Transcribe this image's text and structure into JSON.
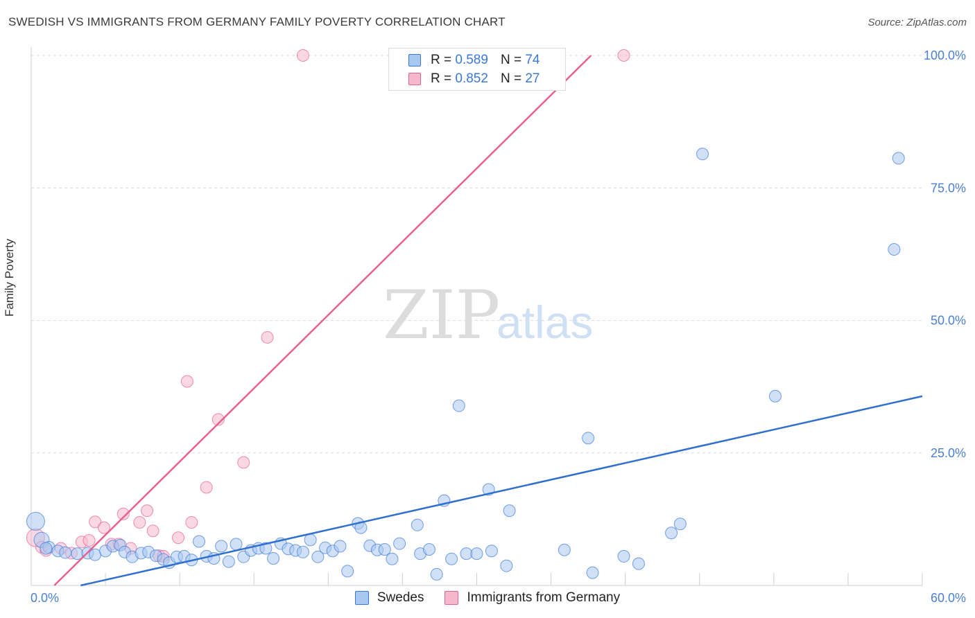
{
  "title": "SWEDISH VS IMMIGRANTS FROM GERMANY FAMILY POVERTY CORRELATION CHART",
  "source": "Source: ZipAtlas.com",
  "watermark": {
    "zip": "ZIP",
    "atlas": "atlas"
  },
  "colors": {
    "blue": "#3a78d8",
    "blue_fill": "#a9c8f0",
    "pink": "#e8608f",
    "pink_fill": "#f5b8cc"
  },
  "legend": {
    "r_label": "R =",
    "n_label": "N =",
    "series": [
      {
        "name": "Swedes",
        "r": "0.589",
        "n": "74"
      },
      {
        "name": "Immigrants from Germany",
        "r": "0.852",
        "n": "27"
      }
    ]
  },
  "chart_data": {
    "type": "scatter",
    "title": "SWEDISH VS IMMIGRANTS FROM GERMANY FAMILY POVERTY CORRELATION CHART",
    "xlabel": "",
    "ylabel": "Family Poverty",
    "xlim": [
      0,
      60
    ],
    "ylim": [
      0,
      100
    ],
    "x_tick_labels": [
      "0.0%",
      "60.0%"
    ],
    "y_ticks": [
      25,
      50,
      75,
      100
    ],
    "y_tick_labels": [
      "25.0%",
      "50.0%",
      "75.0%",
      "100.0%"
    ],
    "grid": true,
    "series": [
      {
        "name": "Swedes",
        "trend": {
          "x0": 0,
          "y0": -2.1,
          "x1": 60,
          "y1": 35.7
        },
        "points": [
          [
            0.3,
            12.1
          ],
          [
            0.7,
            8.6
          ],
          [
            1.2,
            7.2
          ],
          [
            1.8,
            6.5
          ],
          [
            2.3,
            6.2
          ],
          [
            3.1,
            6.0
          ],
          [
            3.8,
            6.1
          ],
          [
            4.3,
            5.8
          ],
          [
            5.0,
            6.5
          ],
          [
            5.5,
            7.4
          ],
          [
            6.0,
            7.6
          ],
          [
            6.3,
            6.3
          ],
          [
            6.8,
            5.4
          ],
          [
            7.4,
            6.1
          ],
          [
            7.9,
            6.3
          ],
          [
            8.4,
            5.6
          ],
          [
            8.9,
            4.9
          ],
          [
            9.3,
            4.3
          ],
          [
            9.8,
            5.4
          ],
          [
            10.3,
            5.5
          ],
          [
            10.8,
            4.8
          ],
          [
            11.3,
            8.3
          ],
          [
            11.8,
            5.5
          ],
          [
            12.3,
            5.1
          ],
          [
            12.8,
            7.4
          ],
          [
            13.3,
            4.5
          ],
          [
            13.8,
            7.8
          ],
          [
            14.3,
            5.4
          ],
          [
            14.8,
            6.6
          ],
          [
            15.3,
            7.0
          ],
          [
            15.8,
            7.0
          ],
          [
            16.3,
            5.1
          ],
          [
            16.8,
            7.9
          ],
          [
            17.3,
            6.9
          ],
          [
            17.8,
            6.6
          ],
          [
            18.3,
            6.3
          ],
          [
            18.8,
            8.6
          ],
          [
            19.3,
            5.4
          ],
          [
            19.8,
            7.1
          ],
          [
            20.3,
            6.5
          ],
          [
            20.8,
            7.4
          ],
          [
            21.3,
            2.7
          ],
          [
            22.0,
            11.7
          ],
          [
            22.2,
            10.9
          ],
          [
            22.8,
            7.5
          ],
          [
            23.3,
            6.7
          ],
          [
            23.8,
            6.8
          ],
          [
            24.3,
            5.0
          ],
          [
            24.8,
            7.9
          ],
          [
            26.0,
            11.4
          ],
          [
            26.2,
            6.0
          ],
          [
            26.8,
            6.8
          ],
          [
            27.3,
            2.1
          ],
          [
            27.8,
            16.0
          ],
          [
            28.3,
            5.0
          ],
          [
            28.8,
            33.9
          ],
          [
            29.3,
            6.0
          ],
          [
            30.0,
            6.0
          ],
          [
            30.8,
            18.1
          ],
          [
            31.0,
            6.5
          ],
          [
            32.0,
            3.7
          ],
          [
            32.2,
            14.1
          ],
          [
            35.9,
            6.7
          ],
          [
            37.5,
            27.8
          ],
          [
            37.8,
            2.4
          ],
          [
            39.9,
            5.5
          ],
          [
            40.9,
            4.1
          ],
          [
            43.1,
            9.9
          ],
          [
            43.7,
            11.6
          ],
          [
            45.2,
            81.4
          ],
          [
            50.1,
            35.7
          ],
          [
            58.1,
            63.4
          ],
          [
            58.4,
            80.6
          ],
          [
            1.0,
            7.0
          ]
        ]
      },
      {
        "name": "Immigrants from Germany",
        "trend": {
          "x0": 0,
          "y0": -4.3,
          "x1": 37.7,
          "y1": 100
        },
        "points": [
          [
            0.3,
            9.0
          ],
          [
            0.7,
            7.2
          ],
          [
            1.0,
            6.6
          ],
          [
            2.0,
            7.0
          ],
          [
            2.7,
            6.1
          ],
          [
            3.4,
            8.2
          ],
          [
            3.9,
            8.5
          ],
          [
            4.3,
            12.0
          ],
          [
            4.9,
            10.9
          ],
          [
            5.4,
            7.8
          ],
          [
            5.9,
            7.8
          ],
          [
            6.2,
            13.5
          ],
          [
            6.7,
            7.0
          ],
          [
            7.3,
            11.9
          ],
          [
            7.8,
            14.1
          ],
          [
            8.2,
            10.3
          ],
          [
            8.6,
            5.6
          ],
          [
            8.9,
            5.5
          ],
          [
            9.9,
            9.0
          ],
          [
            10.5,
            38.5
          ],
          [
            10.8,
            11.9
          ],
          [
            11.8,
            18.5
          ],
          [
            12.6,
            31.3
          ],
          [
            14.3,
            23.2
          ],
          [
            15.9,
            46.8
          ],
          [
            18.3,
            100.0
          ],
          [
            39.9,
            100.0
          ]
        ]
      }
    ]
  }
}
